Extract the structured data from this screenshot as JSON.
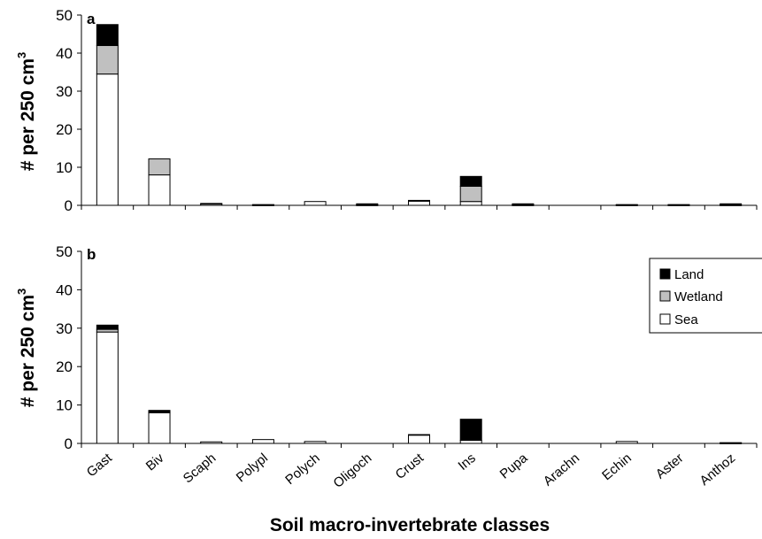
{
  "xlabel": "Soil macro-invertebrate classes",
  "chart_data": [
    {
      "type": "bar",
      "stacked": true,
      "panel_label": "a",
      "ylabel": "# per 250 cm",
      "ylabel_sup": "3",
      "ylim": [
        0,
        50
      ],
      "yticks": [
        "0",
        "10",
        "20",
        "30",
        "40",
        "50"
      ],
      "categories": [
        "Gast",
        "Biv",
        "Scaph",
        "Polypl",
        "Polych",
        "Oligoch",
        "Crust",
        "Ins",
        "Pupa",
        "Arachn",
        "Echin",
        "Aster",
        "Anthoz"
      ],
      "series": [
        {
          "name": "Sea",
          "color": "#ffffff",
          "values": [
            34.5,
            8.0,
            0.4,
            0.1,
            1.0,
            0.1,
            1.1,
            1.0,
            0.1,
            0.0,
            0.1,
            0.1,
            0.1
          ]
        },
        {
          "name": "Wetland",
          "color": "#c0c0c0",
          "values": [
            7.5,
            4.2,
            0.1,
            0.0,
            0.0,
            0.0,
            0.2,
            4.0,
            0.0,
            0.0,
            0.0,
            0.0,
            0.0
          ]
        },
        {
          "name": "Land",
          "color": "#000000",
          "values": [
            5.5,
            0.0,
            0.0,
            0.1,
            0.0,
            0.3,
            0.0,
            2.6,
            0.3,
            0.0,
            0.1,
            0.1,
            0.3
          ]
        }
      ],
      "legend": "none"
    },
    {
      "type": "bar",
      "stacked": true,
      "panel_label": "b",
      "ylabel": "# per 250 cm",
      "ylabel_sup": "3",
      "ylim": [
        0,
        50
      ],
      "yticks": [
        "0",
        "10",
        "20",
        "30",
        "40",
        "50"
      ],
      "categories": [
        "Gast",
        "Biv",
        "Scaph",
        "Polypl",
        "Polych",
        "Oligoch",
        "Crust",
        "Ins",
        "Pupa",
        "Arachn",
        "Echin",
        "Aster",
        "Anthoz"
      ],
      "series": [
        {
          "name": "Sea",
          "color": "#ffffff",
          "values": [
            29.0,
            8.0,
            0.4,
            1.0,
            0.5,
            0.0,
            2.2,
            0.8,
            0.0,
            0.0,
            0.5,
            0.0,
            0.1
          ]
        },
        {
          "name": "Wetland",
          "color": "#c0c0c0",
          "values": [
            0.7,
            0.2,
            0.0,
            0.0,
            0.0,
            0.0,
            0.0,
            0.0,
            0.0,
            0.0,
            0.0,
            0.0,
            0.0
          ]
        },
        {
          "name": "Land",
          "color": "#000000",
          "values": [
            1.1,
            0.4,
            0.0,
            0.0,
            0.0,
            0.0,
            0.1,
            5.5,
            0.0,
            0.0,
            0.0,
            0.0,
            0.1
          ]
        }
      ],
      "legend": "right",
      "legend_entries": [
        "Land",
        "Wetland",
        "Sea"
      ]
    }
  ]
}
